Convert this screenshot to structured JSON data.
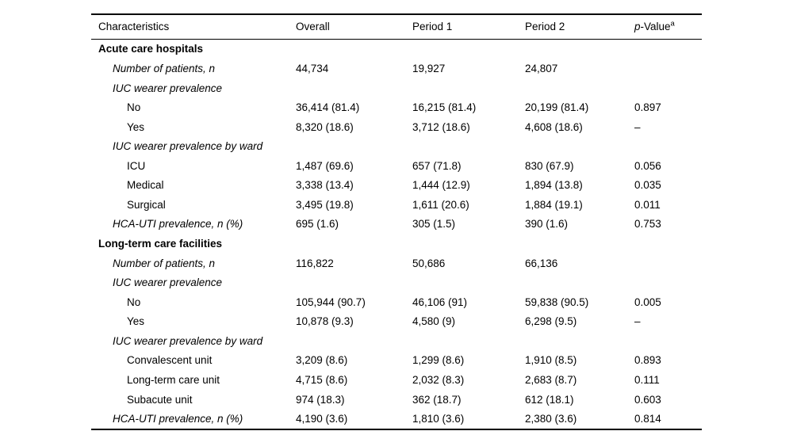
{
  "table": {
    "columns": [
      "Characteristics",
      "Overall",
      "Period 1",
      "Period 2"
    ],
    "pvalue_label_p": "p",
    "pvalue_label_rest": "-Value",
    "pvalue_superscript": "a",
    "rows": [
      {
        "label": "Acute care hospitals",
        "style": "section",
        "values": [
          "",
          "",
          "",
          ""
        ]
      },
      {
        "label": "Number of patients, n",
        "style": "sub",
        "values": [
          "44,734",
          "19,927",
          "24,807",
          ""
        ]
      },
      {
        "label": "IUC wearer prevalence",
        "style": "sub",
        "values": [
          "",
          "",
          "",
          ""
        ]
      },
      {
        "label": "No",
        "style": "leaf",
        "values": [
          "36,414 (81.4)",
          "16,215 (81.4)",
          "20,199 (81.4)",
          "0.897"
        ]
      },
      {
        "label": "Yes",
        "style": "leaf",
        "values": [
          "8,320 (18.6)",
          "3,712 (18.6)",
          "4,608 (18.6)",
          "–"
        ]
      },
      {
        "label": "IUC wearer prevalence by ward",
        "style": "sub",
        "values": [
          "",
          "",
          "",
          ""
        ]
      },
      {
        "label": "ICU",
        "style": "leaf",
        "values": [
          "1,487 (69.6)",
          "657 (71.8)",
          "830 (67.9)",
          "0.056"
        ]
      },
      {
        "label": "Medical",
        "style": "leaf",
        "values": [
          "3,338 (13.4)",
          "1,444 (12.9)",
          "1,894 (13.8)",
          "0.035"
        ]
      },
      {
        "label": "Surgical",
        "style": "leaf",
        "values": [
          "3,495 (19.8)",
          "1,611 (20.6)",
          "1,884 (19.1)",
          "0.011"
        ]
      },
      {
        "label": "HCA-UTI prevalence, n (%)",
        "style": "sub",
        "values": [
          "695 (1.6)",
          "305 (1.5)",
          "390 (1.6)",
          "0.753"
        ]
      },
      {
        "label": "Long-term care facilities",
        "style": "section",
        "values": [
          "",
          "",
          "",
          ""
        ]
      },
      {
        "label": "Number of patients, n",
        "style": "sub",
        "values": [
          "116,822",
          "50,686",
          "66,136",
          ""
        ]
      },
      {
        "label": "IUC wearer prevalence",
        "style": "sub",
        "values": [
          "",
          "",
          "",
          ""
        ]
      },
      {
        "label": "No",
        "style": "leaf",
        "values": [
          "105,944 (90.7)",
          "46,106 (91)",
          "59,838 (90.5)",
          "0.005"
        ]
      },
      {
        "label": "Yes",
        "style": "leaf",
        "values": [
          "10,878 (9.3)",
          "4,580 (9)",
          "6,298 (9.5)",
          "–"
        ]
      },
      {
        "label": "IUC wearer prevalence by ward",
        "style": "sub",
        "values": [
          "",
          "",
          "",
          ""
        ]
      },
      {
        "label": "Convalescent unit",
        "style": "leaf",
        "values": [
          "3,209 (8.6)",
          "1,299 (8.6)",
          "1,910 (8.5)",
          "0.893"
        ]
      },
      {
        "label": "Long-term care unit",
        "style": "leaf",
        "values": [
          "4,715 (8.6)",
          "2,032 (8.3)",
          "2,683 (8.7)",
          "0.111"
        ]
      },
      {
        "label": "Subacute unit",
        "style": "leaf",
        "values": [
          "974 (18.3)",
          "362 (18.7)",
          "612 (18.1)",
          "0.603"
        ]
      },
      {
        "label": "HCA-UTI prevalence, n (%)",
        "style": "sub",
        "values": [
          "4,190 (3.6)",
          "1,810 (3.6)",
          "2,380 (3.6)",
          "0.814"
        ]
      }
    ]
  }
}
